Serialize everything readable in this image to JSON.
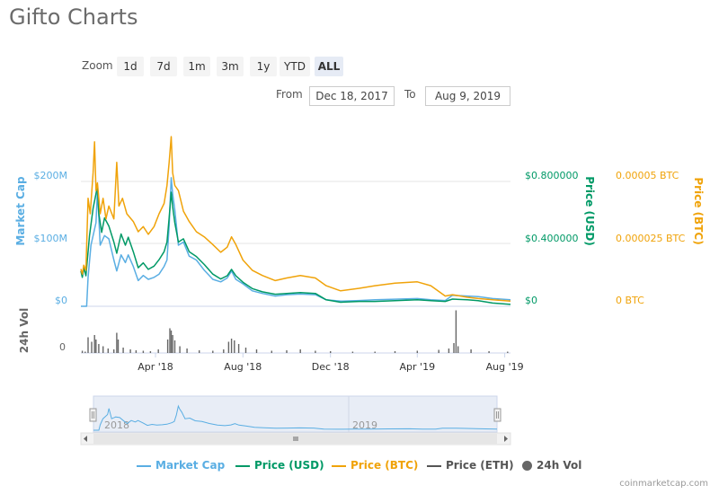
{
  "page_title": "Gifto Charts",
  "zoom": {
    "label": "Zoom",
    "buttons": [
      "1d",
      "7d",
      "1m",
      "3m",
      "1y",
      "YTD",
      "ALL"
    ],
    "active": "ALL"
  },
  "range": {
    "from_label": "From",
    "from_value": "Dec 18, 2017",
    "to_label": "To",
    "to_value": "Aug 9, 2019"
  },
  "credit": "coinmarketcap.com",
  "colors": {
    "market_cap": "#5aaee3",
    "price_usd": "#009966",
    "price_btc": "#f0a30a",
    "price_eth": "#555555",
    "volume": "#666666"
  },
  "chart_data": {
    "type": "line",
    "x_range": [
      "2017-12-18",
      "2019-08-09"
    ],
    "x_tick_labels": [
      "Apr '18",
      "Aug '18",
      "Dec '18",
      "Apr '19",
      "Aug '19"
    ],
    "x_tick_dates": [
      "2018-04-01",
      "2018-08-01",
      "2018-12-01",
      "2019-04-01",
      "2019-08-01"
    ],
    "axes": {
      "market_cap": {
        "label": "Market Cap",
        "ticks": [
          "$0",
          "$100M",
          "$200M"
        ],
        "range": [
          0,
          260000000
        ]
      },
      "price_usd": {
        "label": "Price (USD)",
        "ticks": [
          "$0",
          "$0.400000",
          "$0.800000"
        ],
        "range": [
          0,
          1.04
        ]
      },
      "price_btc": {
        "label": "Price (BTC)",
        "ticks": [
          "0 BTC",
          "0.000025 BTC",
          "0.00005 BTC"
        ],
        "range": [
          0,
          6.5e-05
        ]
      },
      "volume": {
        "label": "24h Vol",
        "ticks": [
          "0"
        ]
      }
    },
    "navigator_labels": [
      "2018",
      "2019"
    ],
    "series": [
      {
        "name": "Market Cap",
        "axis": "market_cap",
        "points": [
          [
            "2017-12-18",
            0
          ],
          [
            "2017-12-26",
            0
          ],
          [
            "2017-12-28",
            45000000
          ],
          [
            "2018-01-01",
            95000000
          ],
          [
            "2018-01-04",
            110000000
          ],
          [
            "2018-01-08",
            130000000
          ],
          [
            "2018-01-10",
            180000000
          ],
          [
            "2018-01-14",
            95000000
          ],
          [
            "2018-01-20",
            110000000
          ],
          [
            "2018-01-26",
            105000000
          ],
          [
            "2018-02-02",
            72000000
          ],
          [
            "2018-02-06",
            55000000
          ],
          [
            "2018-02-12",
            80000000
          ],
          [
            "2018-02-18",
            68000000
          ],
          [
            "2018-02-22",
            80000000
          ],
          [
            "2018-03-01",
            62000000
          ],
          [
            "2018-03-08",
            40000000
          ],
          [
            "2018-03-15",
            48000000
          ],
          [
            "2018-03-22",
            42000000
          ],
          [
            "2018-03-30",
            45000000
          ],
          [
            "2018-04-06",
            50000000
          ],
          [
            "2018-04-13",
            62000000
          ],
          [
            "2018-04-17",
            72000000
          ],
          [
            "2018-04-20",
            125000000
          ],
          [
            "2018-04-23",
            200000000
          ],
          [
            "2018-04-25",
            175000000
          ],
          [
            "2018-04-28",
            150000000
          ],
          [
            "2018-05-03",
            95000000
          ],
          [
            "2018-05-10",
            100000000
          ],
          [
            "2018-05-18",
            78000000
          ],
          [
            "2018-05-28",
            72000000
          ],
          [
            "2018-06-08",
            56000000
          ],
          [
            "2018-06-20",
            42000000
          ],
          [
            "2018-07-01",
            38000000
          ],
          [
            "2018-07-10",
            44000000
          ],
          [
            "2018-07-16",
            55000000
          ],
          [
            "2018-07-22",
            42000000
          ],
          [
            "2018-08-01",
            35000000
          ],
          [
            "2018-08-14",
            24000000
          ],
          [
            "2018-08-28",
            20000000
          ],
          [
            "2018-09-15",
            16000000
          ],
          [
            "2018-10-01",
            18000000
          ],
          [
            "2018-10-20",
            19000000
          ],
          [
            "2018-11-10",
            18000000
          ],
          [
            "2018-11-25",
            10000000
          ],
          [
            "2018-12-15",
            8000000
          ],
          [
            "2019-01-10",
            9000000
          ],
          [
            "2019-02-01",
            10000000
          ],
          [
            "2019-03-01",
            11000000
          ],
          [
            "2019-04-01",
            12000000
          ],
          [
            "2019-04-20",
            10000000
          ],
          [
            "2019-05-10",
            9000000
          ],
          [
            "2019-05-20",
            17000000
          ],
          [
            "2019-06-10",
            16000000
          ],
          [
            "2019-06-25",
            15000000
          ],
          [
            "2019-07-15",
            12000000
          ],
          [
            "2019-08-09",
            10000000
          ]
        ]
      },
      {
        "name": "Price (USD)",
        "axis": "price_usd",
        "points": [
          [
            "2017-12-18",
            0.22
          ],
          [
            "2017-12-20",
            0.18
          ],
          [
            "2017-12-22",
            0.24
          ],
          [
            "2017-12-25",
            0.19
          ],
          [
            "2017-12-30",
            0.44
          ],
          [
            "2018-01-04",
            0.61
          ],
          [
            "2018-01-08",
            0.7
          ],
          [
            "2018-01-10",
            0.75
          ],
          [
            "2018-01-12",
            0.58
          ],
          [
            "2018-01-16",
            0.46
          ],
          [
            "2018-01-20",
            0.55
          ],
          [
            "2018-01-26",
            0.5
          ],
          [
            "2018-02-02",
            0.4
          ],
          [
            "2018-02-06",
            0.33
          ],
          [
            "2018-02-12",
            0.45
          ],
          [
            "2018-02-18",
            0.38
          ],
          [
            "2018-02-22",
            0.43
          ],
          [
            "2018-03-01",
            0.34
          ],
          [
            "2018-03-08",
            0.24
          ],
          [
            "2018-03-15",
            0.27
          ],
          [
            "2018-03-22",
            0.23
          ],
          [
            "2018-03-30",
            0.25
          ],
          [
            "2018-04-06",
            0.29
          ],
          [
            "2018-04-13",
            0.34
          ],
          [
            "2018-04-17",
            0.4
          ],
          [
            "2018-04-20",
            0.55
          ],
          [
            "2018-04-23",
            0.71
          ],
          [
            "2018-04-25",
            0.62
          ],
          [
            "2018-04-28",
            0.52
          ],
          [
            "2018-05-03",
            0.4
          ],
          [
            "2018-05-10",
            0.42
          ],
          [
            "2018-05-18",
            0.34
          ],
          [
            "2018-05-28",
            0.31
          ],
          [
            "2018-06-08",
            0.26
          ],
          [
            "2018-06-20",
            0.2
          ],
          [
            "2018-07-01",
            0.17
          ],
          [
            "2018-07-10",
            0.19
          ],
          [
            "2018-07-16",
            0.23
          ],
          [
            "2018-07-22",
            0.19
          ],
          [
            "2018-08-01",
            0.15
          ],
          [
            "2018-08-14",
            0.11
          ],
          [
            "2018-08-28",
            0.09
          ],
          [
            "2018-09-15",
            0.075
          ],
          [
            "2018-10-01",
            0.08
          ],
          [
            "2018-10-20",
            0.085
          ],
          [
            "2018-11-10",
            0.08
          ],
          [
            "2018-11-25",
            0.04
          ],
          [
            "2018-12-15",
            0.025
          ],
          [
            "2019-01-10",
            0.03
          ],
          [
            "2019-02-01",
            0.03
          ],
          [
            "2019-03-01",
            0.035
          ],
          [
            "2019-04-01",
            0.04
          ],
          [
            "2019-04-20",
            0.035
          ],
          [
            "2019-05-10",
            0.03
          ],
          [
            "2019-05-20",
            0.045
          ],
          [
            "2019-06-10",
            0.04
          ],
          [
            "2019-06-25",
            0.035
          ],
          [
            "2019-07-15",
            0.02
          ],
          [
            "2019-08-09",
            0.012
          ]
        ]
      },
      {
        "name": "Price (BTC)",
        "axis": "price_btc",
        "points": [
          [
            "2017-12-18",
            1.45e-05
          ],
          [
            "2017-12-20",
            1.25e-05
          ],
          [
            "2017-12-22",
            1.6e-05
          ],
          [
            "2017-12-25",
            1.4e-05
          ],
          [
            "2017-12-28",
            4.2e-05
          ],
          [
            "2017-12-31",
            3.6e-05
          ],
          [
            "2018-01-04",
            5.2e-05
          ],
          [
            "2018-01-06",
            6.4e-05
          ],
          [
            "2018-01-08",
            4.5e-05
          ],
          [
            "2018-01-10",
            4.8e-05
          ],
          [
            "2018-01-14",
            3.6e-05
          ],
          [
            "2018-01-18",
            4.2e-05
          ],
          [
            "2018-01-22",
            3.4e-05
          ],
          [
            "2018-01-26",
            3.9e-05
          ],
          [
            "2018-02-02",
            3.4e-05
          ],
          [
            "2018-02-06",
            5.6e-05
          ],
          [
            "2018-02-09",
            3.9e-05
          ],
          [
            "2018-02-14",
            4.2e-05
          ],
          [
            "2018-02-20",
            3.6e-05
          ],
          [
            "2018-03-01",
            3.3e-05
          ],
          [
            "2018-03-08",
            2.9e-05
          ],
          [
            "2018-03-15",
            3.1e-05
          ],
          [
            "2018-03-22",
            2.8e-05
          ],
          [
            "2018-03-30",
            3.1e-05
          ],
          [
            "2018-04-06",
            3.6e-05
          ],
          [
            "2018-04-13",
            4e-05
          ],
          [
            "2018-04-17",
            4.7e-05
          ],
          [
            "2018-04-20",
            5.6e-05
          ],
          [
            "2018-04-23",
            6.6e-05
          ],
          [
            "2018-04-25",
            5.2e-05
          ],
          [
            "2018-04-28",
            4.7e-05
          ],
          [
            "2018-05-03",
            4.5e-05
          ],
          [
            "2018-05-10",
            3.7e-05
          ],
          [
            "2018-05-18",
            3.3e-05
          ],
          [
            "2018-05-28",
            2.9e-05
          ],
          [
            "2018-06-08",
            2.7e-05
          ],
          [
            "2018-06-20",
            2.4e-05
          ],
          [
            "2018-07-01",
            2.1e-05
          ],
          [
            "2018-07-10",
            2.3e-05
          ],
          [
            "2018-07-16",
            2.7e-05
          ],
          [
            "2018-07-22",
            2.4e-05
          ],
          [
            "2018-08-01",
            1.8e-05
          ],
          [
            "2018-08-14",
            1.4e-05
          ],
          [
            "2018-08-28",
            1.2e-05
          ],
          [
            "2018-09-15",
            1e-05
          ],
          [
            "2018-10-01",
            1.1e-05
          ],
          [
            "2018-10-20",
            1.2e-05
          ],
          [
            "2018-11-10",
            1.1e-05
          ],
          [
            "2018-11-25",
            8e-06
          ],
          [
            "2018-12-15",
            6e-06
          ],
          [
            "2019-01-10",
            7e-06
          ],
          [
            "2019-02-01",
            8e-06
          ],
          [
            "2019-03-01",
            9e-06
          ],
          [
            "2019-04-01",
            9.5e-06
          ],
          [
            "2019-04-20",
            8e-06
          ],
          [
            "2019-05-10",
            4e-06
          ],
          [
            "2019-05-20",
            4.5e-06
          ],
          [
            "2019-06-10",
            3.5e-06
          ],
          [
            "2019-06-25",
            3e-06
          ],
          [
            "2019-07-15",
            2.5e-06
          ],
          [
            "2019-08-09",
            2e-06
          ]
        ]
      },
      {
        "name": "Price (ETH)",
        "axis": "price_btc",
        "visible": false,
        "points": []
      },
      {
        "name": "24h Vol",
        "axis": "volume",
        "type": "bar",
        "relative_values": true,
        "points": [
          [
            "2017-12-20",
            0.05
          ],
          [
            "2017-12-24",
            0.03
          ],
          [
            "2017-12-28",
            0.35
          ],
          [
            "2018-01-02",
            0.25
          ],
          [
            "2018-01-06",
            0.4
          ],
          [
            "2018-01-08",
            0.3
          ],
          [
            "2018-01-12",
            0.2
          ],
          [
            "2018-01-18",
            0.15
          ],
          [
            "2018-01-25",
            0.1
          ],
          [
            "2018-02-02",
            0.08
          ],
          [
            "2018-02-06",
            0.45
          ],
          [
            "2018-02-08",
            0.3
          ],
          [
            "2018-02-15",
            0.12
          ],
          [
            "2018-02-25",
            0.08
          ],
          [
            "2018-03-05",
            0.06
          ],
          [
            "2018-03-15",
            0.05
          ],
          [
            "2018-03-25",
            0.04
          ],
          [
            "2018-04-05",
            0.08
          ],
          [
            "2018-04-18",
            0.3
          ],
          [
            "2018-04-21",
            0.55
          ],
          [
            "2018-04-23",
            0.5
          ],
          [
            "2018-04-25",
            0.4
          ],
          [
            "2018-04-28",
            0.28
          ],
          [
            "2018-05-05",
            0.15
          ],
          [
            "2018-05-15",
            0.1
          ],
          [
            "2018-06-01",
            0.06
          ],
          [
            "2018-06-20",
            0.05
          ],
          [
            "2018-07-05",
            0.08
          ],
          [
            "2018-07-12",
            0.25
          ],
          [
            "2018-07-16",
            0.32
          ],
          [
            "2018-07-20",
            0.28
          ],
          [
            "2018-07-26",
            0.2
          ],
          [
            "2018-08-05",
            0.12
          ],
          [
            "2018-08-20",
            0.08
          ],
          [
            "2018-09-10",
            0.05
          ],
          [
            "2018-10-01",
            0.06
          ],
          [
            "2018-10-20",
            0.08
          ],
          [
            "2018-11-10",
            0.05
          ],
          [
            "2018-12-01",
            0.04
          ],
          [
            "2019-01-01",
            0.03
          ],
          [
            "2019-02-01",
            0.03
          ],
          [
            "2019-03-01",
            0.04
          ],
          [
            "2019-04-01",
            0.05
          ],
          [
            "2019-05-01",
            0.07
          ],
          [
            "2019-05-15",
            0.1
          ],
          [
            "2019-05-22",
            0.22
          ],
          [
            "2019-05-25",
            0.95
          ],
          [
            "2019-05-28",
            0.15
          ],
          [
            "2019-06-15",
            0.08
          ],
          [
            "2019-07-10",
            0.04
          ],
          [
            "2019-08-05",
            0.03
          ]
        ]
      }
    ]
  },
  "legend": [
    {
      "label": "Market Cap",
      "series": "market_cap"
    },
    {
      "label": "Price (USD)",
      "series": "price_usd"
    },
    {
      "label": "Price (BTC)",
      "series": "price_btc"
    },
    {
      "label": "Price (ETH)",
      "series": "price_eth"
    },
    {
      "label": "24h Vol",
      "series": "volume"
    }
  ]
}
